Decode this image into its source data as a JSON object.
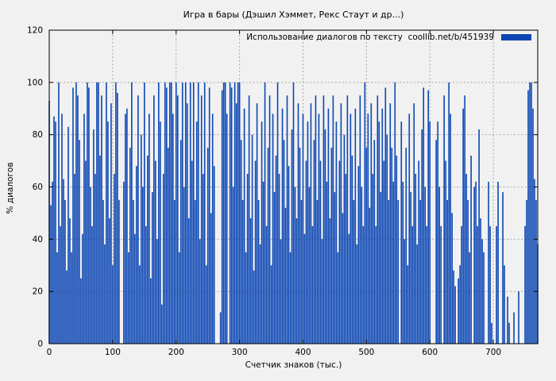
{
  "page": {
    "background": "#f1f1f1"
  },
  "chart_data": {
    "type": "bar",
    "subtype": "impulses",
    "title": "Игра в бары (Дэшил Хэммет, Рекс Стаут и др...)",
    "legend": {
      "label": "Использование диалогов по тексту  coollib.net/b/451939",
      "position": "top-right",
      "swatch_color": "#0b46b3"
    },
    "xlabel": "Счетчик знаков (тыс.)",
    "ylabel": "% диалогов",
    "xlim": [
      0,
      770
    ],
    "ylim": [
      0,
      120
    ],
    "xticks": [
      0,
      100,
      200,
      300,
      400,
      500,
      600,
      700
    ],
    "yticks": [
      0,
      20,
      40,
      60,
      80,
      100,
      120
    ],
    "grid": true,
    "grid_color": "#a6a6a6",
    "border_color": "#000000",
    "bar_color": "#0b46b3",
    "x_start": 0,
    "x_step": 2.5,
    "values": [
      93,
      53,
      62,
      87,
      85,
      35,
      100,
      45,
      88,
      63,
      55,
      28,
      83,
      48,
      35,
      98,
      65,
      100,
      95,
      78,
      25,
      42,
      88,
      70,
      100,
      98,
      60,
      45,
      82,
      65,
      100,
      100,
      72,
      95,
      55,
      38,
      100,
      85,
      48,
      92,
      30,
      65,
      100,
      96,
      55,
      0,
      0,
      62,
      88,
      90,
      35,
      75,
      100,
      55,
      42,
      68,
      95,
      30,
      80,
      60,
      100,
      45,
      72,
      88,
      25,
      58,
      95,
      70,
      40,
      100,
      85,
      15,
      65,
      100,
      98,
      75,
      100,
      100,
      88,
      55,
      100,
      95,
      35,
      78,
      100,
      60,
      100,
      92,
      48,
      100,
      70,
      100,
      55,
      85,
      100,
      40,
      95,
      65,
      100,
      30,
      75,
      98,
      50,
      88,
      68,
      0,
      0,
      0,
      12,
      97,
      100,
      100,
      88,
      0,
      100,
      98,
      60,
      100,
      92,
      100,
      100,
      78,
      55,
      90,
      35,
      65,
      95,
      48,
      80,
      28,
      70,
      92,
      55,
      38,
      85,
      62,
      100,
      45,
      75,
      95,
      30,
      88,
      58,
      72,
      100,
      65,
      40,
      90,
      78,
      52,
      95,
      68,
      35,
      82,
      100,
      60,
      48,
      92,
      75,
      55,
      88,
      42,
      70,
      85,
      60,
      92,
      45,
      78,
      95,
      55,
      88,
      70,
      40,
      95,
      82,
      62,
      90,
      48,
      75,
      95,
      58,
      85,
      35,
      70,
      92,
      50,
      80,
      65,
      95,
      42,
      88,
      72,
      55,
      90,
      38,
      68,
      95,
      60,
      45,
      100,
      75,
      88,
      52,
      92,
      65,
      78,
      45,
      95,
      85,
      58,
      90,
      70,
      98,
      80,
      55,
      92,
      75,
      62,
      100,
      72,
      55,
      0,
      85,
      62,
      40,
      75,
      30,
      88,
      58,
      45,
      92,
      65,
      38,
      70,
      55,
      82,
      98,
      60,
      45,
      97,
      85,
      0,
      0,
      0,
      78,
      85,
      60,
      45,
      0,
      95,
      70,
      55,
      100,
      88,
      50,
      28,
      22,
      0,
      25,
      30,
      45,
      90,
      95,
      65,
      55,
      35,
      72,
      0,
      60,
      62,
      45,
      82,
      48,
      40,
      35,
      0,
      0,
      62,
      45,
      8,
      0,
      0,
      45,
      62,
      0,
      0,
      58,
      30,
      0,
      18,
      8,
      0,
      0,
      12,
      0,
      0,
      20,
      0,
      0,
      0,
      45,
      55,
      97,
      100,
      100,
      90,
      63,
      55,
      38
    ]
  }
}
